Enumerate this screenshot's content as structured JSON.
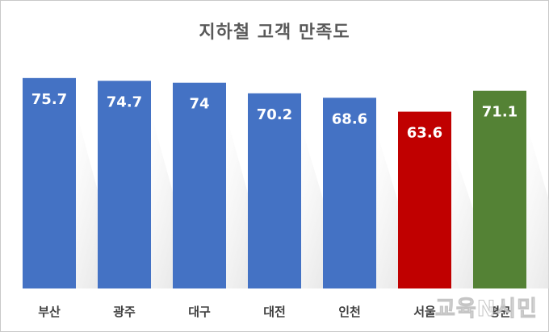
{
  "chart_data": {
    "type": "bar",
    "title": "지하철 고객 만족도",
    "categories": [
      "부산",
      "광주",
      "대구",
      "대전",
      "인천",
      "서울",
      "평균"
    ],
    "values": [
      75.7,
      74.7,
      74,
      70.2,
      68.6,
      63.6,
      71.1
    ],
    "value_labels": [
      "75.7",
      "74.7",
      "74",
      "70.2",
      "68.6",
      "63.6",
      "71.1"
    ],
    "colors": [
      "#4472C4",
      "#4472C4",
      "#4472C4",
      "#4472C4",
      "#4472C4",
      "#C00000",
      "#548235"
    ],
    "ylim": [
      0,
      80
    ],
    "grid": false,
    "legend": "none"
  },
  "watermark": "교육N시민"
}
